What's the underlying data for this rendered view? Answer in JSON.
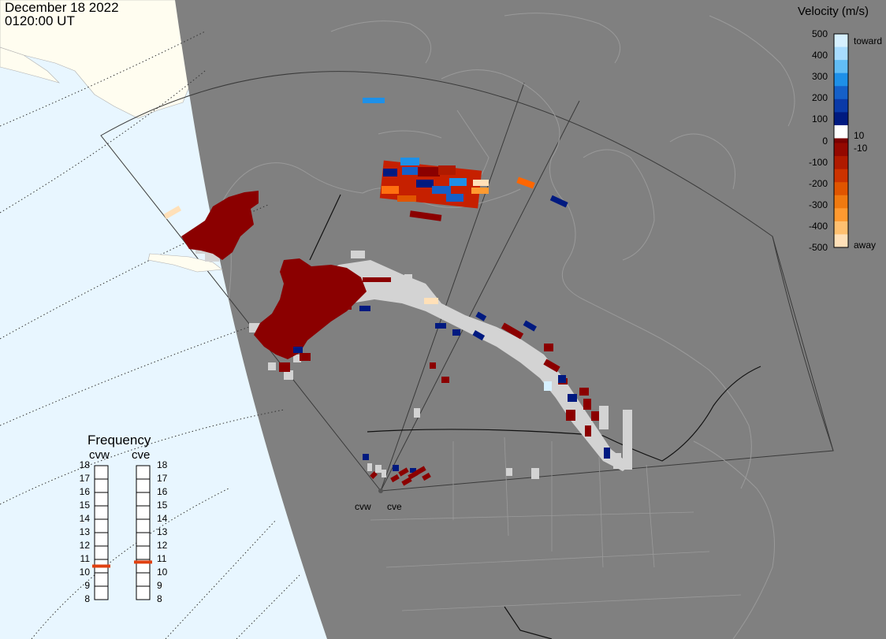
{
  "header": {
    "date": "December 18 2022",
    "time": "0120:00 UT"
  },
  "colorbar": {
    "title": "Velocity (m/s)",
    "toward_label": "toward",
    "away_label": "away",
    "ticks": [
      "500",
      "400",
      "300",
      "200",
      "100",
      "0",
      "-100",
      "-200",
      "-300",
      "-400",
      "-500"
    ],
    "small_tick_pos": "10",
    "small_tick_neg": "-10",
    "colors": [
      "#d6f0ff",
      "#a8dcff",
      "#62bdf5",
      "#1e90e8",
      "#1560c8",
      "#0a3aa8",
      "#001a80",
      "#ffffff",
      "#7a0000",
      "#940800",
      "#b01a00",
      "#cc3300",
      "#e05500",
      "#f07a10",
      "#ff9a30",
      "#ffc070",
      "#ffe0b8"
    ]
  },
  "frequency_panel": {
    "title": "Frequency",
    "radars": [
      {
        "name": "cvw",
        "freq_mhz": 10.5
      },
      {
        "name": "cve",
        "freq_mhz": 10.8
      }
    ],
    "ticks": [
      "18",
      "17",
      "16",
      "15",
      "14",
      "13",
      "12",
      "11",
      "10",
      "9",
      "8"
    ]
  },
  "sites": [
    {
      "name": "cvw"
    },
    {
      "name": "cve"
    }
  ],
  "legend_colors": {
    "ground_scatter": "#d3d3d3",
    "night_shade": "#808080",
    "ocean_day": "#e8f6ff",
    "land_day": "#fffdf0",
    "frequency_marker": "#e04010"
  }
}
